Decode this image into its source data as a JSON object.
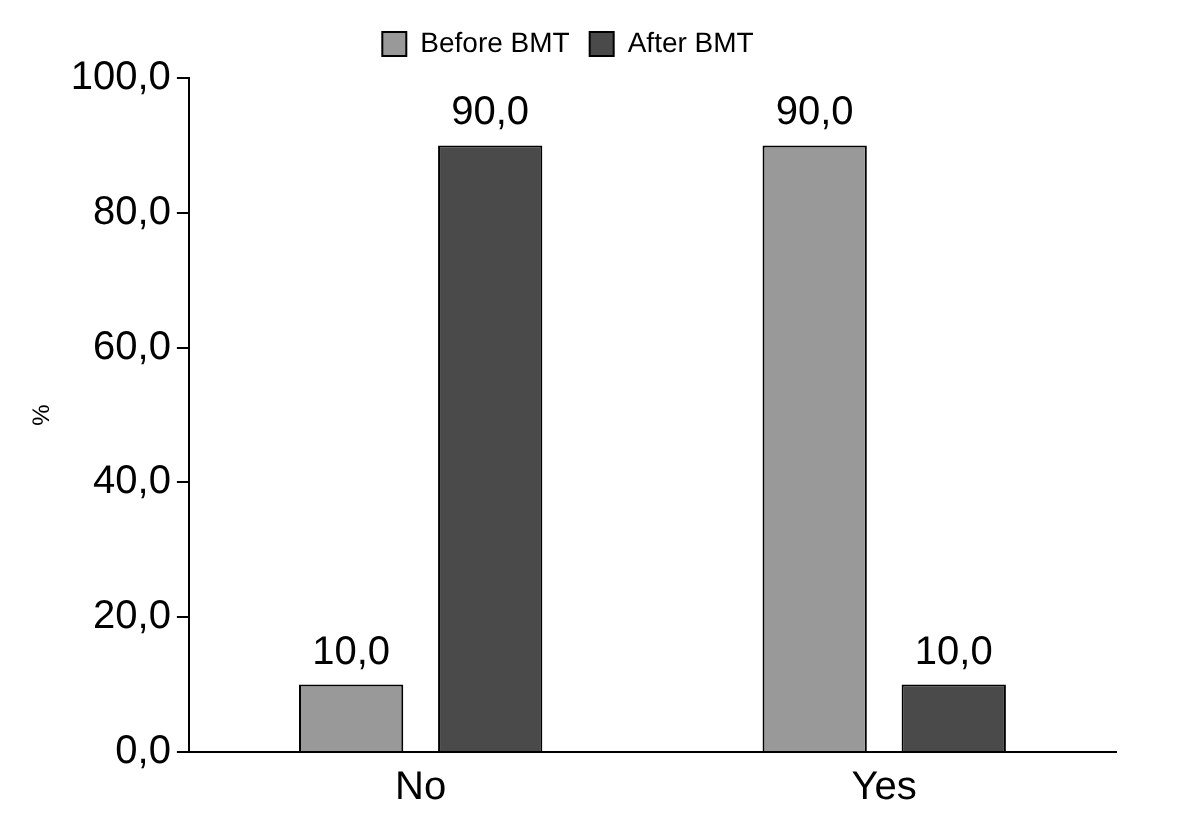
{
  "chart_data": {
    "type": "bar",
    "ylabel": "%",
    "categories": [
      "No",
      "Yes"
    ],
    "series": [
      {
        "name": "Before BMT",
        "color": "#999999",
        "values": [
          10,
          90
        ],
        "value_labels": [
          "10,0",
          "90,0"
        ]
      },
      {
        "name": "After BMT",
        "color": "#4a4a4a",
        "values": [
          90,
          10
        ],
        "value_labels": [
          "90,0",
          "10,0"
        ]
      }
    ],
    "ylim": [
      0,
      100
    ],
    "yticks": [
      {
        "value": 0,
        "label": "0,0"
      },
      {
        "value": 20,
        "label": "20,0"
      },
      {
        "value": 40,
        "label": "40,0"
      },
      {
        "value": 60,
        "label": "60,0"
      },
      {
        "value": 80,
        "label": "80,0"
      },
      {
        "value": 100,
        "label": "100,0"
      }
    ],
    "grid": false,
    "legend": "top"
  }
}
